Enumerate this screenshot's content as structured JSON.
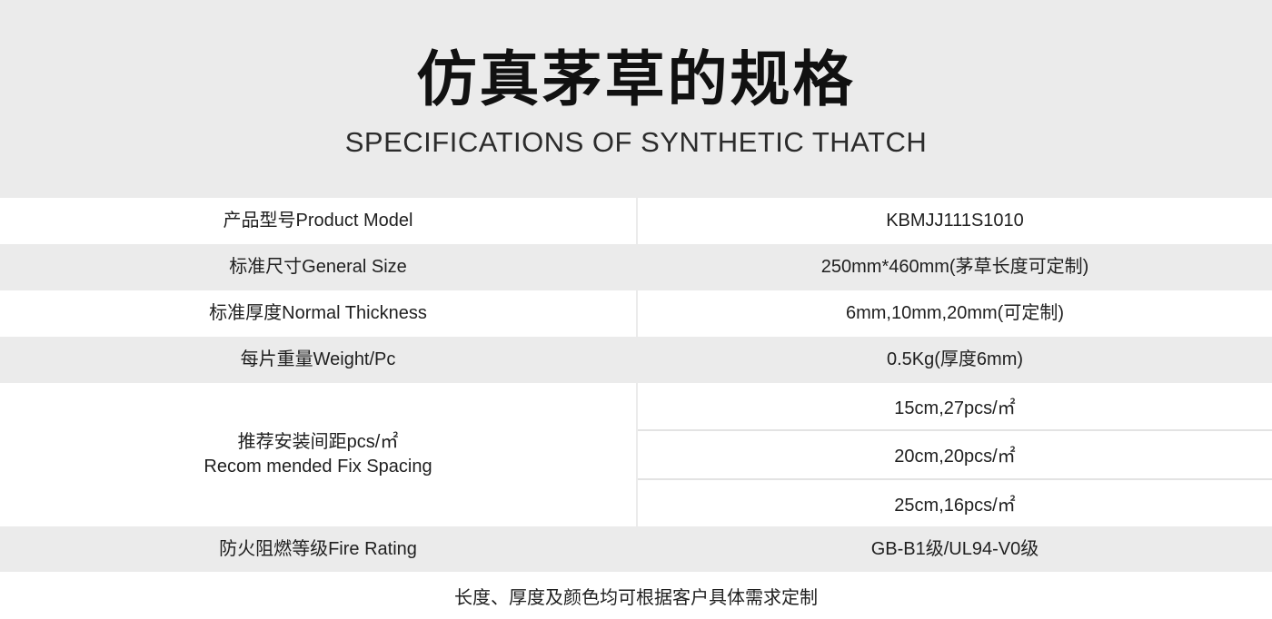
{
  "page": {
    "title": "仿真茅草的规格",
    "subtitle": "SPECIFICATIONS OF SYNTHETIC THATCH",
    "footer_note": "长度、厚度及颜色均可根据客户具体需求定制"
  },
  "table": {
    "rows": [
      {
        "label": "产品型号Product Model",
        "value": "KBMJJ111S1010"
      },
      {
        "label": "标准尺寸General Size",
        "value": "250mm*460mm(茅草长度可定制)"
      },
      {
        "label": "标准厚度Normal Thickness",
        "value": "6mm,10mm,20mm(可定制)"
      },
      {
        "label": "每片重量Weight/Pc",
        "value": "0.5Kg(厚度6mm)"
      },
      {
        "label_line1": "推荐安装间距pcs/㎡",
        "label_line2": "Recom mended Fix Spacing",
        "values": [
          "15cm,27pcs/㎡",
          "20cm,20pcs/㎡",
          "25cm,16pcs/㎡"
        ]
      },
      {
        "label": "防火阻燃等级Fire Rating",
        "value": "GB-B1级/UL94-V0级"
      }
    ]
  },
  "colors": {
    "header_bg": "#ebebeb",
    "row_shade_bg": "#ebebeb",
    "row_bg": "#ffffff",
    "divider": "#e3e3e3",
    "title_text": "#111111",
    "body_text": "#1f1f1f"
  }
}
